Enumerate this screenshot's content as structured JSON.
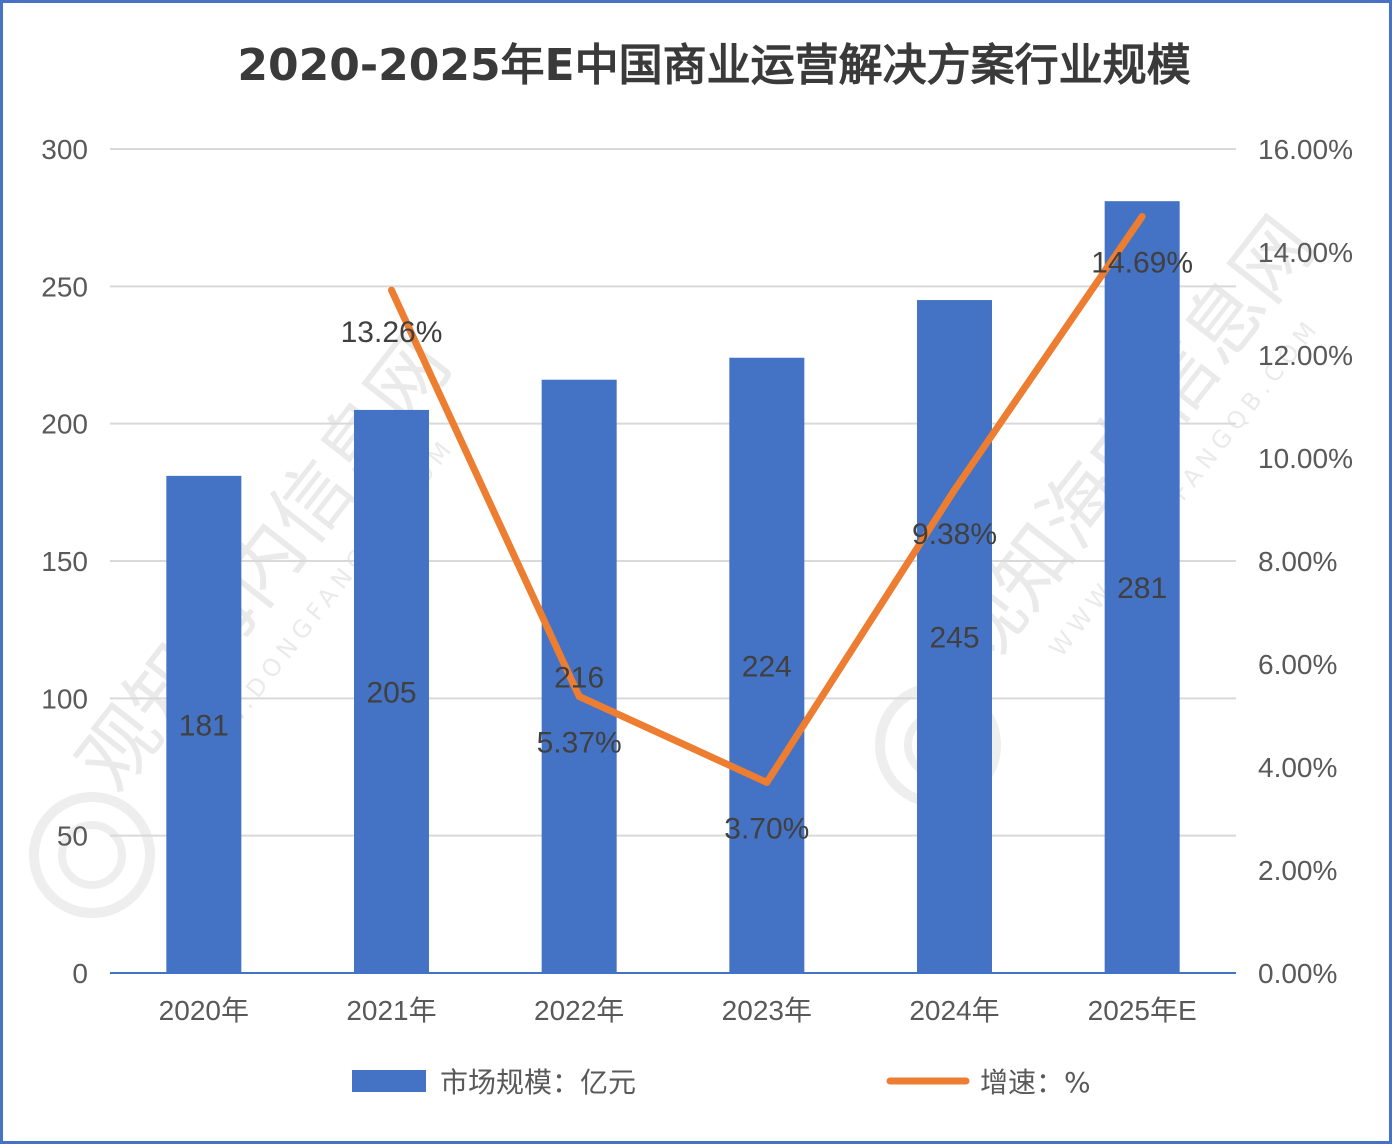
{
  "chart_data": {
    "type": "bar",
    "title": "2020-2025年E中国商业运营解决方案行业规模",
    "categories": [
      "2020年",
      "2021年",
      "2022年",
      "2023年",
      "2024年",
      "2025年E"
    ],
    "series": [
      {
        "name": "市场规模：亿元",
        "type": "bar",
        "axis": "left",
        "values": [
          181,
          205,
          216,
          224,
          245,
          281
        ],
        "labels": [
          "181",
          "205",
          "216",
          "224",
          "245",
          "281"
        ],
        "color": "#4472c4"
      },
      {
        "name": "增速：%",
        "type": "line",
        "axis": "right",
        "values": [
          null,
          13.26,
          5.37,
          3.7,
          9.38,
          14.69
        ],
        "labels": [
          "",
          "13.26%",
          "5.37%",
          "3.70%",
          "9.38%",
          "14.69%"
        ],
        "color": "#ed7d31"
      }
    ],
    "left_axis": {
      "ylim": [
        0,
        300
      ],
      "ticks": [
        "0",
        "50",
        "100",
        "150",
        "200",
        "250",
        "300"
      ]
    },
    "right_axis": {
      "ylim": [
        0,
        16
      ],
      "ticks": [
        "0.00%",
        "2.00%",
        "4.00%",
        "6.00%",
        "8.00%",
        "10.00%",
        "12.00%",
        "14.00%",
        "16.00%"
      ]
    },
    "grid": true,
    "legend_position": "bottom"
  },
  "watermark": {
    "text": "观知海内信息网",
    "url_text": "WWW.DONGFANGQB.COM"
  }
}
